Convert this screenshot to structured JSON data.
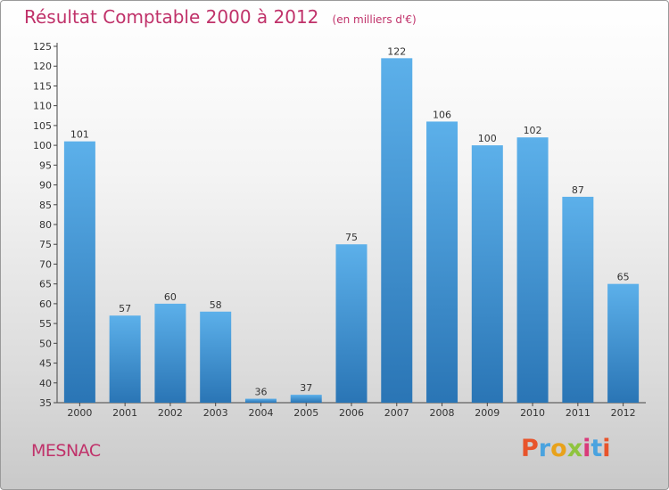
{
  "header": {
    "title": "Résultat Comptable 2000 à 2012",
    "subtitle": "(en milliers d'€)"
  },
  "footer": {
    "town": "MESNAC",
    "logo": "Proxiti"
  },
  "colors": {
    "bar_top": "#5cb0ea",
    "bar_bottom": "#2a75b5",
    "title": "#c0326a",
    "logo_letters": [
      "#e8542b",
      "#4aa3df",
      "#e8a21b",
      "#8fc43e",
      "#d93a7a",
      "#4aa3df",
      "#e8542b"
    ]
  },
  "chart_data": {
    "type": "bar",
    "title": "Résultat Comptable 2000 à 2012",
    "subtitle": "(en milliers d'€)",
    "xlabel": "",
    "ylabel": "",
    "categories": [
      "2000",
      "2001",
      "2002",
      "2003",
      "2004",
      "2005",
      "2006",
      "2007",
      "2008",
      "2009",
      "2010",
      "2011",
      "2012"
    ],
    "values": [
      101,
      57,
      60,
      58,
      36,
      37,
      75,
      122,
      106,
      100,
      102,
      87,
      65
    ],
    "ylim": [
      35,
      125
    ],
    "yticks": [
      35,
      40,
      45,
      50,
      55,
      60,
      65,
      70,
      75,
      80,
      85,
      90,
      95,
      100,
      105,
      110,
      115,
      120,
      125
    ],
    "grid": false,
    "data_labels": true
  }
}
